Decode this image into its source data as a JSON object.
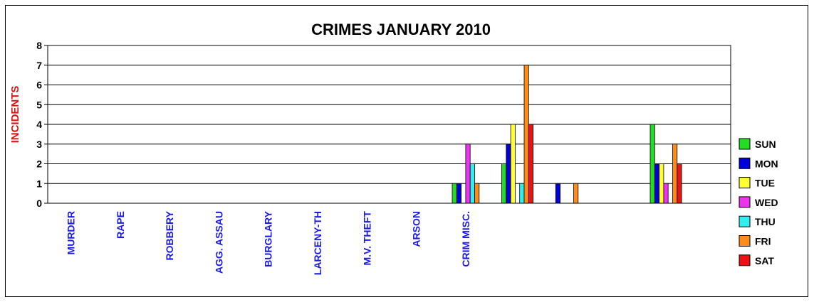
{
  "chart_data": {
    "type": "bar",
    "title": "CRIMES JANUARY 2010",
    "ylabel": "INCIDENTS",
    "xlabel": "",
    "ylim": [
      0,
      8
    ],
    "yticks": [
      "0",
      "1",
      "2",
      "3",
      "4",
      "5",
      "6",
      "7",
      "8"
    ],
    "grid": true,
    "legend": "right",
    "categories": [
      "MURDER",
      "RAPE",
      "ROBBERY",
      "AGG. ASSAU",
      "BURGLARY",
      "LARCENY-TH",
      "M.V. THEFT",
      "ARSON",
      "CRIM MISC."
    ],
    "series": [
      {
        "name": "SUN",
        "color": "#22dd22",
        "values": [
          0,
          0,
          0,
          0,
          1,
          2,
          0,
          0,
          4
        ]
      },
      {
        "name": "MON",
        "color": "#0000dd",
        "values": [
          0,
          0,
          0,
          0,
          1,
          3,
          1,
          0,
          2
        ]
      },
      {
        "name": "TUE",
        "color": "#ffff33",
        "values": [
          0,
          0,
          0,
          0,
          0,
          4,
          0,
          0,
          2
        ]
      },
      {
        "name": "WED",
        "color": "#ee33ee",
        "values": [
          0,
          0,
          0,
          0,
          3,
          0,
          0,
          0,
          1
        ]
      },
      {
        "name": "THU",
        "color": "#33eeee",
        "values": [
          0,
          0,
          0,
          0,
          2,
          1,
          0,
          0,
          0
        ]
      },
      {
        "name": "FRI",
        "color": "#ff8c1a",
        "values": [
          0,
          0,
          0,
          0,
          1,
          7,
          1,
          0,
          3
        ]
      },
      {
        "name": "SAT",
        "color": "#ee1111",
        "values": [
          0,
          0,
          0,
          0,
          0,
          4,
          0,
          0,
          2
        ]
      }
    ],
    "colors": {
      "category_label": "#1a1aee",
      "ylabel": "#dd1111",
      "text": "#000000"
    }
  }
}
